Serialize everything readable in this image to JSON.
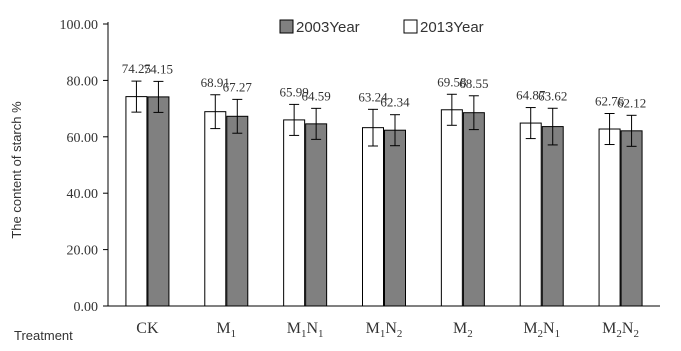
{
  "chart_data": {
    "type": "bar",
    "title": "",
    "xlabel": "Treatment",
    "ylabel": "The content of starch %",
    "ylim": [
      0,
      100
    ],
    "yticks": [
      "0.00",
      "20.00",
      "40.00",
      "60.00",
      "80.00",
      "100.00"
    ],
    "ytick_values": [
      0,
      20,
      40,
      60,
      80,
      100
    ],
    "categories": [
      {
        "base": "CK",
        "sub": ""
      },
      {
        "base": "M",
        "sub": "1"
      },
      {
        "base": "M",
        "sub": "1",
        "base2": "N",
        "sub2": "1"
      },
      {
        "base": "M",
        "sub": "1",
        "base2": "N",
        "sub2": "2"
      },
      {
        "base": "M",
        "sub": "2"
      },
      {
        "base": "M",
        "sub": "2",
        "base2": "N",
        "sub2": "1"
      },
      {
        "base": "M",
        "sub": "2",
        "base2": "N",
        "sub2": "2"
      }
    ],
    "series": [
      {
        "name": "2013Year",
        "color": "#ffffff",
        "values": [
          74.25,
          68.91,
          65.99,
          63.24,
          69.58,
          64.87,
          62.76
        ],
        "labels": [
          "74.25",
          "68.91",
          "65.99",
          "63.24",
          "69.58",
          "64.87",
          "62.76"
        ],
        "errors": [
          5.5,
          6.0,
          5.5,
          6.5,
          5.5,
          5.5,
          5.5
        ]
      },
      {
        "name": "2003Year",
        "color": "#808080",
        "values": [
          74.15,
          67.27,
          64.59,
          62.34,
          68.55,
          63.62,
          62.12
        ],
        "labels": [
          "74.15",
          "67.27",
          "64.59",
          "62.34",
          "68.55",
          "63.62",
          "62.12"
        ],
        "errors": [
          5.5,
          6.0,
          5.5,
          5.5,
          6.0,
          6.5,
          5.5
        ]
      }
    ],
    "legend": {
      "placement": "top",
      "order": [
        "2003Year",
        "2013Year"
      ]
    },
    "grid": false
  }
}
